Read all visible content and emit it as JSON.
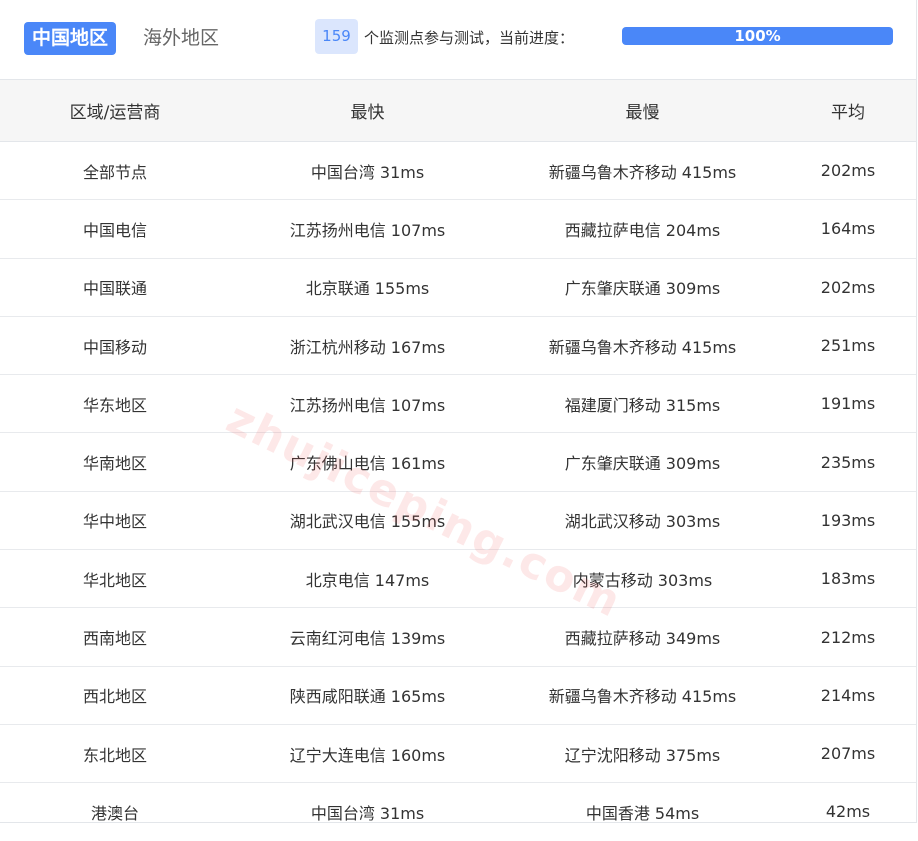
{
  "tabs": {
    "active": "中国地区",
    "inactive": "海外地区"
  },
  "progress": {
    "count": "159",
    "text": "个监测点参与测试，当前进度：",
    "label": "100%",
    "value": 100
  },
  "colors": {
    "accent": "#4a87f8"
  },
  "table": {
    "headers": [
      "区域/运营商",
      "最快",
      "最慢",
      "平均"
    ],
    "rows": [
      [
        "全部节点",
        "中国台湾 31ms",
        "新疆乌鲁木齐移动 415ms",
        "202ms"
      ],
      [
        "中国电信",
        "江苏扬州电信 107ms",
        "西藏拉萨电信 204ms",
        "164ms"
      ],
      [
        "中国联通",
        "北京联通 155ms",
        "广东肇庆联通 309ms",
        "202ms"
      ],
      [
        "中国移动",
        "浙江杭州移动 167ms",
        "新疆乌鲁木齐移动 415ms",
        "251ms"
      ],
      [
        "华东地区",
        "江苏扬州电信 107ms",
        "福建厦门移动 315ms",
        "191ms"
      ],
      [
        "华南地区",
        "广东佛山电信 161ms",
        "广东肇庆联通 309ms",
        "235ms"
      ],
      [
        "华中地区",
        "湖北武汉电信 155ms",
        "湖北武汉移动 303ms",
        "193ms"
      ],
      [
        "华北地区",
        "北京电信 147ms",
        "内蒙古移动 303ms",
        "183ms"
      ],
      [
        "西南地区",
        "云南红河电信 139ms",
        "西藏拉萨移动 349ms",
        "212ms"
      ],
      [
        "西北地区",
        "陕西咸阳联通 165ms",
        "新疆乌鲁木齐移动 415ms",
        "214ms"
      ],
      [
        "东北地区",
        "辽宁大连电信 160ms",
        "辽宁沈阳移动 375ms",
        "207ms"
      ],
      [
        "港澳台",
        "中国台湾 31ms",
        "中国香港 54ms",
        "42ms"
      ]
    ]
  },
  "watermark": "zhujiceping.com"
}
